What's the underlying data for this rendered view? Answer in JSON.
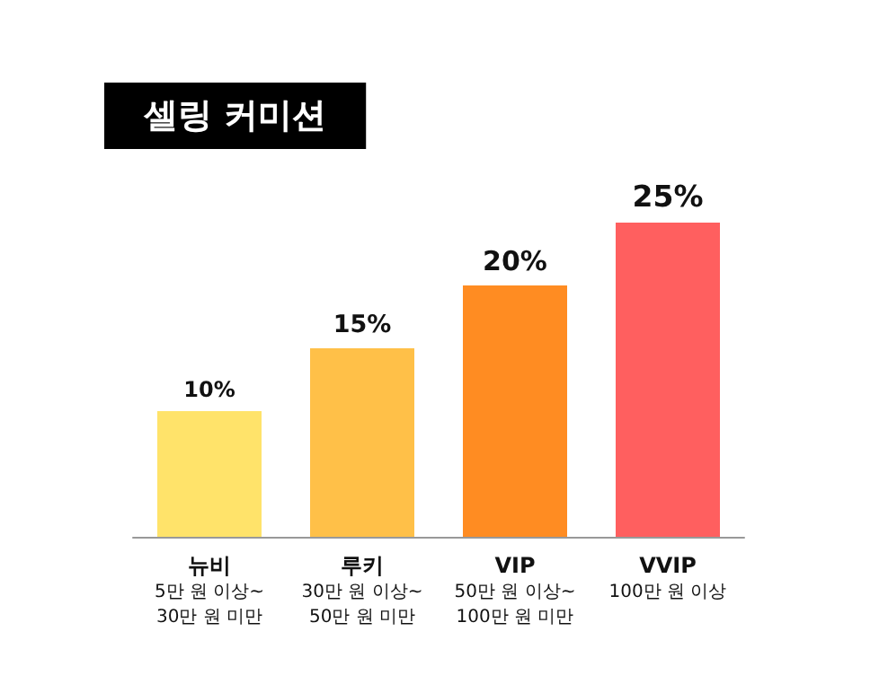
{
  "chart_data": {
    "type": "bar",
    "title": "셀링 커미션",
    "categories": [
      "뉴비\n5만 원 이상~\n30만 원 미만",
      "루키\n30만 원 이상~\n50만 원 미만",
      "VIP\n50만 원 이상~\n100만 원 미만",
      "VVIP\n100만 원 이상"
    ],
    "values": [
      10,
      15,
      20,
      25
    ],
    "colors": [
      "#ffe36a",
      "#ffc048",
      "#ff8c22",
      "#ff5f5f"
    ],
    "value_labels": [
      "10%",
      "15%",
      "20%",
      "25%"
    ]
  }
}
